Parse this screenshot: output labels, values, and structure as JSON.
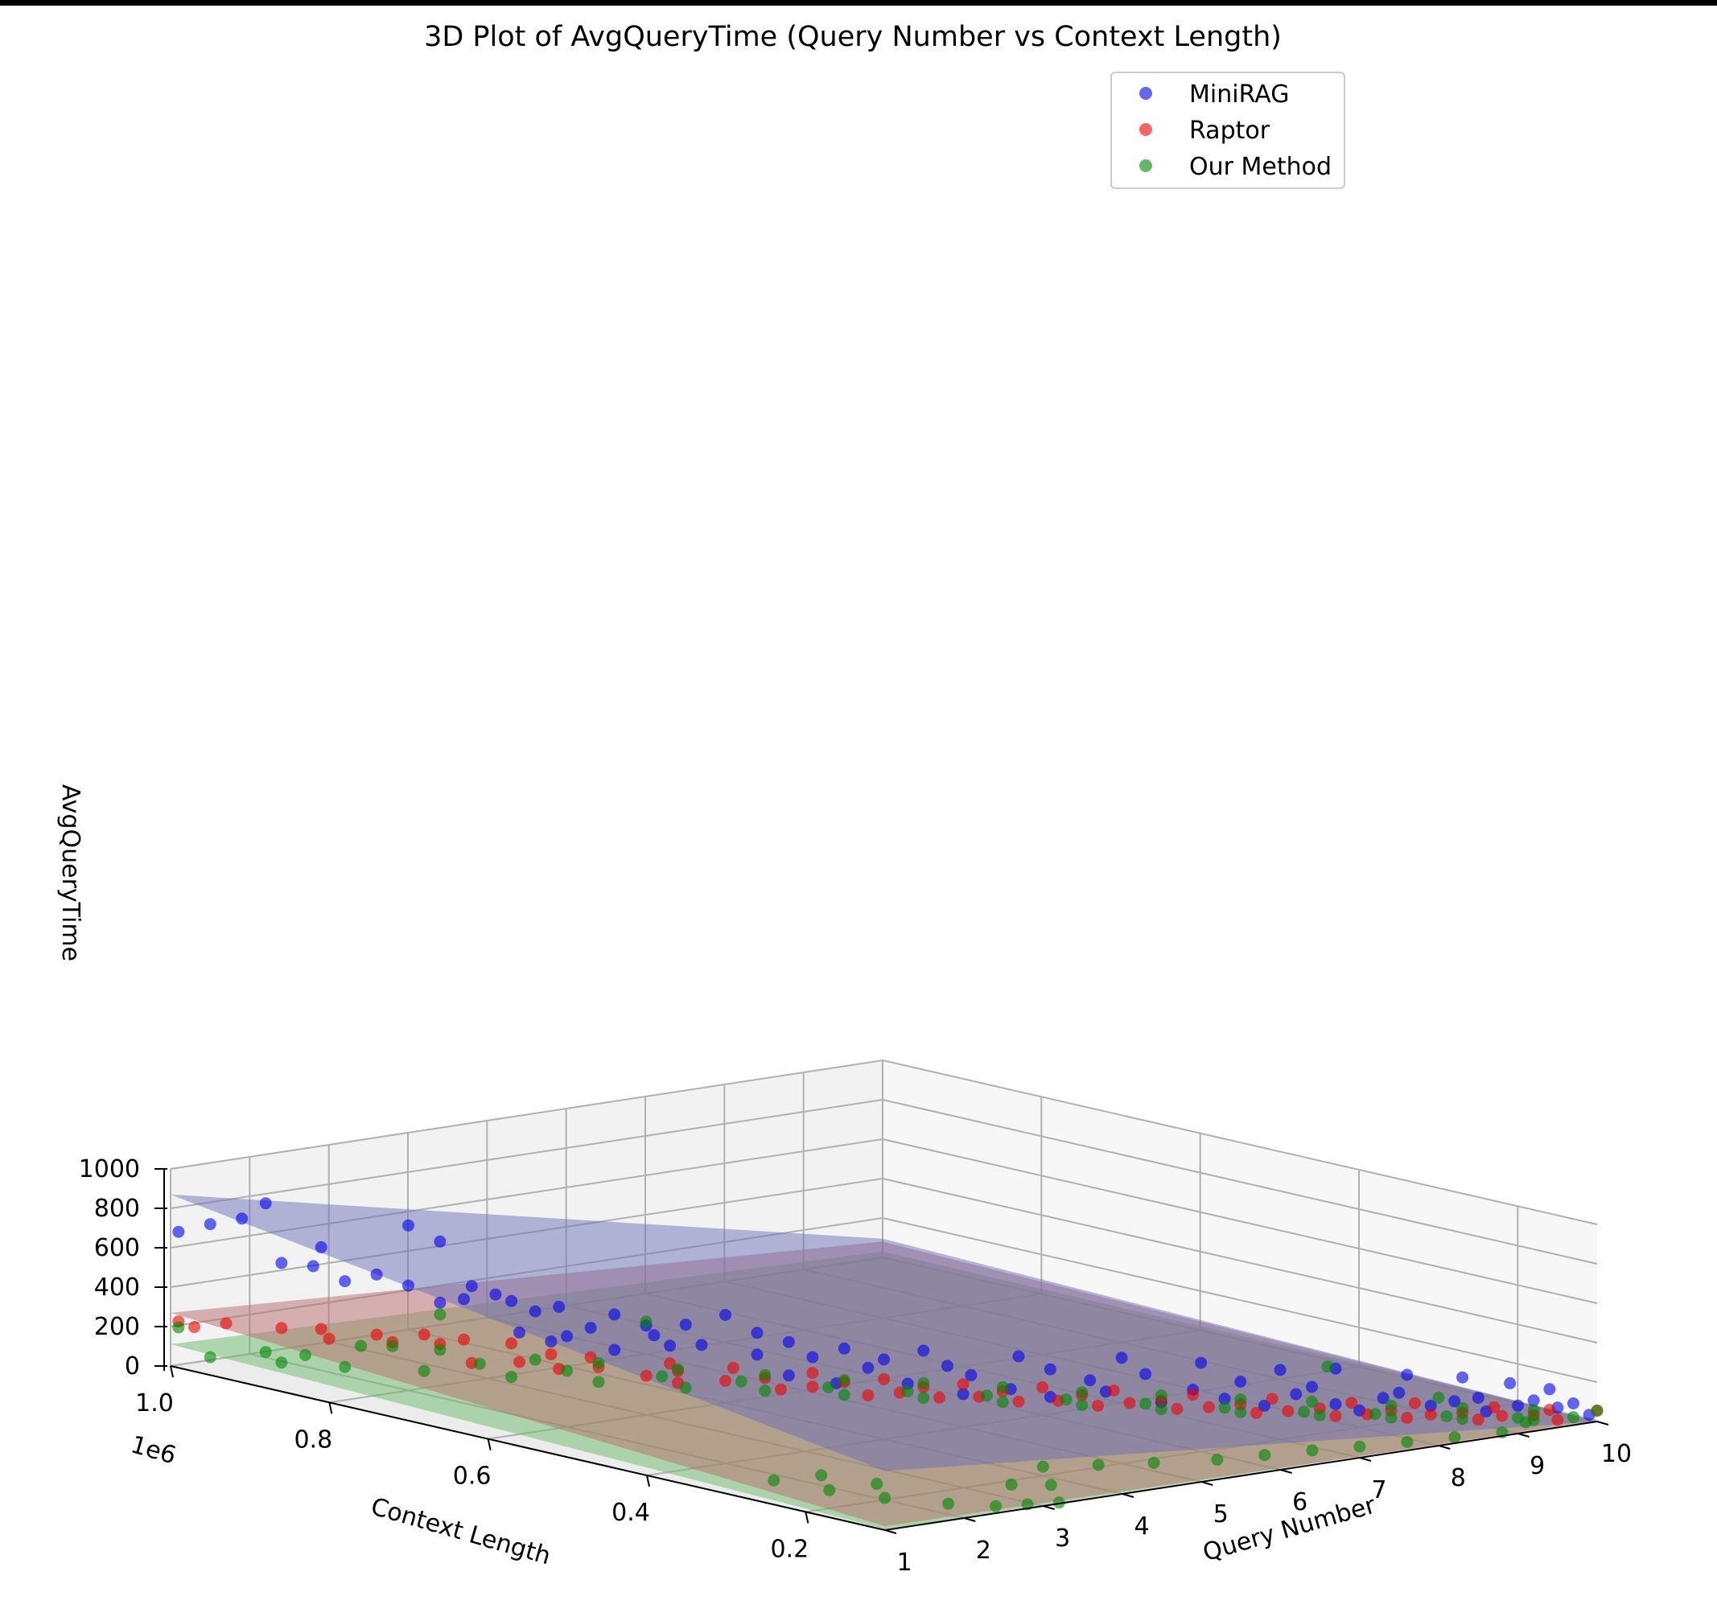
{
  "chart_data": {
    "type": "scatter3d",
    "title": "3D Plot of AvgQueryTime (Query Number vs Context Length)",
    "xlabel": "Query Number",
    "ylabel": "Context Length",
    "zlabel": "AvgQueryTime",
    "y_offset_label": "1e6",
    "xlim": [
      1,
      10
    ],
    "ylim": [
      0.1,
      1.0
    ],
    "zlim": [
      0,
      1000
    ],
    "x_ticks": [
      "1",
      "2",
      "3",
      "4",
      "5",
      "6",
      "7",
      "8",
      "9",
      "10"
    ],
    "y_ticks": [
      "0.2",
      "0.4",
      "0.6",
      "0.8",
      "1.0"
    ],
    "z_ticks": [
      "0",
      "200",
      "400",
      "600",
      "800",
      "1000"
    ],
    "grid": true,
    "legend_position": "top-right",
    "series": [
      {
        "name": "MiniRAG",
        "color": "#0000ee",
        "plane": {
          "z_at_q1_c1": 870,
          "z_at_q10_c1": 95,
          "z_at_q1_c01": 300,
          "z_at_q10_c01": 0
        },
        "points": [
          [
            1.5,
            0.93,
            860
          ],
          [
            1.2,
            0.97,
            735
          ],
          [
            1.4,
            0.95,
            770
          ],
          [
            1.0,
            0.99,
            690
          ],
          [
            2.5,
            0.85,
            760
          ],
          [
            2.6,
            0.82,
            700
          ],
          [
            1.9,
            0.9,
            640
          ],
          [
            1.6,
            0.92,
            560
          ],
          [
            1.8,
            0.9,
            550
          ],
          [
            2.2,
            0.86,
            520
          ],
          [
            2.0,
            0.88,
            480
          ],
          [
            2.4,
            0.84,
            470
          ],
          [
            2.8,
            0.8,
            480
          ],
          [
            2.9,
            0.78,
            450
          ],
          [
            2.7,
            0.8,
            420
          ],
          [
            3.0,
            0.77,
            420
          ],
          [
            3.3,
            0.74,
            400
          ],
          [
            3.1,
            0.75,
            380
          ],
          [
            2.6,
            0.82,
            390
          ],
          [
            3.6,
            0.7,
            380
          ],
          [
            4.2,
            0.62,
            415
          ],
          [
            4.0,
            0.65,
            350
          ],
          [
            3.8,
            0.68,
            330
          ],
          [
            4.4,
            0.6,
            330
          ],
          [
            3.5,
            0.72,
            300
          ],
          [
            3.0,
            0.76,
            270
          ],
          [
            3.3,
            0.73,
            260
          ],
          [
            3.8,
            0.67,
            290
          ],
          [
            4.6,
            0.58,
            290
          ],
          [
            5.0,
            0.55,
            260
          ],
          [
            5.5,
            0.5,
            265
          ],
          [
            6.2,
            0.45,
            240
          ],
          [
            6.8,
            0.38,
            260
          ],
          [
            7.3,
            0.33,
            250
          ],
          [
            7.8,
            0.28,
            230
          ],
          [
            8.2,
            0.25,
            240
          ],
          [
            8.6,
            0.2,
            230
          ],
          [
            9.0,
            0.17,
            220
          ],
          [
            9.3,
            0.14,
            200
          ],
          [
            9.6,
            0.12,
            170
          ],
          [
            5.2,
            0.52,
            220
          ],
          [
            5.6,
            0.48,
            200
          ],
          [
            6.4,
            0.43,
            180
          ],
          [
            6.9,
            0.36,
            190
          ],
          [
            7.5,
            0.3,
            170
          ],
          [
            8.0,
            0.26,
            150
          ],
          [
            8.6,
            0.21,
            130
          ],
          [
            9.1,
            0.16,
            120
          ],
          [
            9.5,
            0.13,
            110
          ],
          [
            9.8,
            0.11,
            95
          ],
          [
            4.4,
            0.6,
            220
          ],
          [
            4.8,
            0.57,
            210
          ],
          [
            3.9,
            0.66,
            240
          ],
          [
            4.1,
            0.64,
            250
          ],
          [
            5.1,
            0.53,
            175
          ],
          [
            5.8,
            0.47,
            150
          ],
          [
            6.6,
            0.4,
            140
          ],
          [
            7.2,
            0.33,
            120
          ],
          [
            7.9,
            0.27,
            110
          ],
          [
            8.5,
            0.22,
            100
          ],
          [
            9.0,
            0.18,
            90
          ],
          [
            9.4,
            0.14,
            80
          ],
          [
            9.7,
            0.12,
            70
          ],
          [
            4.6,
            0.58,
            120
          ],
          [
            5.3,
            0.5,
            110
          ],
          [
            6.0,
            0.44,
            95
          ],
          [
            6.7,
            0.39,
            85
          ],
          [
            7.4,
            0.31,
            80
          ],
          [
            8.1,
            0.24,
            75
          ],
          [
            8.8,
            0.19,
            70
          ],
          [
            3.6,
            0.7,
            200
          ],
          [
            3.2,
            0.74,
            230
          ],
          [
            4.9,
            0.55,
            90
          ],
          [
            5.7,
            0.47,
            60
          ],
          [
            6.3,
            0.42,
            55
          ],
          [
            7.0,
            0.35,
            50
          ],
          [
            7.7,
            0.29,
            45
          ],
          [
            8.3,
            0.23,
            40
          ],
          [
            9.2,
            0.16,
            45
          ],
          [
            9.9,
            0.1,
            40
          ]
        ]
      },
      {
        "name": "Raptor",
        "color": "#ee0000",
        "plane": {
          "z_at_q1_c1": 270,
          "z_at_q10_c1": 80,
          "z_at_q1_c01": 20,
          "z_at_q10_c01": 0
        },
        "points": [
          [
            1.0,
            0.99,
            235
          ],
          [
            1.3,
            0.96,
            235
          ],
          [
            1.6,
            0.92,
            230
          ],
          [
            1.9,
            0.9,
            225
          ],
          [
            2.2,
            0.86,
            215
          ],
          [
            2.5,
            0.83,
            225
          ],
          [
            2.7,
            0.8,
            215
          ],
          [
            3.0,
            0.77,
            205
          ],
          [
            1.1,
            0.98,
            210
          ],
          [
            1.9,
            0.89,
            185
          ],
          [
            2.3,
            0.85,
            180
          ],
          [
            2.6,
            0.82,
            180
          ],
          [
            3.2,
            0.74,
            165
          ],
          [
            3.5,
            0.72,
            150
          ],
          [
            3.9,
            0.66,
            150
          ],
          [
            4.3,
            0.62,
            140
          ],
          [
            4.8,
            0.57,
            130
          ],
          [
            5.2,
            0.52,
            120
          ],
          [
            5.7,
            0.47,
            110
          ],
          [
            6.2,
            0.42,
            110
          ],
          [
            6.7,
            0.38,
            100
          ],
          [
            7.2,
            0.33,
            95
          ],
          [
            7.7,
            0.28,
            90
          ],
          [
            8.2,
            0.23,
            85
          ],
          [
            8.7,
            0.2,
            80
          ],
          [
            9.2,
            0.15,
            75
          ],
          [
            9.6,
            0.12,
            65
          ],
          [
            10.0,
            0.1,
            55
          ],
          [
            3.0,
            0.76,
            120
          ],
          [
            3.5,
            0.71,
            110
          ],
          [
            4.0,
            0.66,
            105
          ],
          [
            4.5,
            0.6,
            95
          ],
          [
            5.0,
            0.55,
            90
          ],
          [
            5.5,
            0.5,
            80
          ],
          [
            6.0,
            0.45,
            75
          ],
          [
            6.5,
            0.4,
            70
          ],
          [
            7.0,
            0.35,
            60
          ],
          [
            7.5,
            0.3,
            55
          ],
          [
            8.0,
            0.25,
            50
          ],
          [
            8.5,
            0.21,
            45
          ],
          [
            9.0,
            0.17,
            40
          ],
          [
            9.5,
            0.13,
            35
          ],
          [
            2.8,
            0.8,
            90
          ],
          [
            3.3,
            0.74,
            85
          ],
          [
            3.8,
            0.68,
            75
          ],
          [
            4.3,
            0.63,
            65
          ],
          [
            4.8,
            0.57,
            60
          ],
          [
            5.3,
            0.51,
            55
          ],
          [
            5.8,
            0.46,
            50
          ],
          [
            6.3,
            0.41,
            45
          ],
          [
            6.8,
            0.37,
            40
          ],
          [
            7.3,
            0.32,
            35
          ],
          [
            7.8,
            0.27,
            30
          ],
          [
            8.3,
            0.22,
            30
          ],
          [
            8.8,
            0.19,
            25
          ],
          [
            9.3,
            0.15,
            25
          ],
          [
            4.0,
            0.66,
            45
          ],
          [
            4.6,
            0.59,
            40
          ],
          [
            5.1,
            0.53,
            35
          ],
          [
            5.6,
            0.49,
            30
          ],
          [
            6.1,
            0.44,
            25
          ],
          [
            6.6,
            0.39,
            20
          ],
          [
            7.1,
            0.34,
            20
          ],
          [
            7.6,
            0.29,
            15
          ],
          [
            8.1,
            0.24,
            15
          ],
          [
            8.6,
            0.2,
            12
          ],
          [
            9.1,
            0.16,
            10
          ],
          [
            9.7,
            0.12,
            8
          ]
        ]
      },
      {
        "name": "Our Method",
        "color": "#008800",
        "plane": {
          "z_at_q1_c1": 110,
          "z_at_q10_c1": 30,
          "z_at_q1_c01": 5,
          "z_at_q10_c01": 10
        },
        "points": [
          [
            1.0,
            0.99,
            205
          ],
          [
            2.0,
            0.86,
            170
          ],
          [
            2.6,
            0.82,
            330
          ],
          [
            3.8,
            0.68,
            350
          ],
          [
            1.5,
            0.93,
            105
          ],
          [
            1.7,
            0.9,
            105
          ],
          [
            2.3,
            0.85,
            160
          ],
          [
            2.6,
            0.82,
            150
          ],
          [
            3.1,
            0.75,
            135
          ],
          [
            3.5,
            0.71,
            130
          ],
          [
            4.0,
            0.66,
            115
          ],
          [
            4.5,
            0.6,
            110
          ],
          [
            5.0,
            0.55,
            100
          ],
          [
            5.5,
            0.5,
            100
          ],
          [
            6.0,
            0.45,
            95
          ],
          [
            6.5,
            0.4,
            85
          ],
          [
            7.0,
            0.35,
            85
          ],
          [
            7.5,
            0.3,
            80
          ],
          [
            8.0,
            0.26,
            75
          ],
          [
            8.5,
            0.21,
            70
          ],
          [
            9.0,
            0.17,
            65
          ],
          [
            9.5,
            0.13,
            60
          ],
          [
            10.0,
            0.1,
            55
          ],
          [
            1.2,
            0.97,
            60
          ],
          [
            1.6,
            0.92,
            55
          ],
          [
            2.0,
            0.88,
            45
          ],
          [
            2.5,
            0.83,
            40
          ],
          [
            3.0,
            0.77,
            35
          ],
          [
            3.5,
            0.71,
            35
          ],
          [
            4.0,
            0.65,
            30
          ],
          [
            4.5,
            0.6,
            30
          ],
          [
            5.0,
            0.55,
            25
          ],
          [
            5.5,
            0.5,
            25
          ],
          [
            6.0,
            0.45,
            20
          ],
          [
            6.5,
            0.4,
            20
          ],
          [
            7.0,
            0.35,
            15
          ],
          [
            7.5,
            0.3,
            15
          ],
          [
            8.0,
            0.25,
            15
          ],
          [
            8.5,
            0.21,
            10
          ],
          [
            9.0,
            0.17,
            10
          ],
          [
            9.5,
            0.13,
            10
          ],
          [
            2.8,
            0.79,
            95
          ],
          [
            3.3,
            0.73,
            85
          ],
          [
            3.9,
            0.67,
            75
          ],
          [
            4.4,
            0.62,
            65
          ],
          [
            4.9,
            0.56,
            60
          ],
          [
            5.4,
            0.51,
            55
          ],
          [
            5.9,
            0.46,
            50
          ],
          [
            6.4,
            0.41,
            45
          ],
          [
            6.9,
            0.36,
            40
          ],
          [
            7.4,
            0.31,
            35
          ],
          [
            7.9,
            0.26,
            30
          ],
          [
            8.4,
            0.22,
            25
          ],
          [
            8.9,
            0.18,
            20
          ],
          [
            9.4,
            0.14,
            18
          ],
          [
            2.0,
            0.2,
            10
          ],
          [
            2.3,
            0.15,
            8
          ],
          [
            2.6,
            0.12,
            5
          ],
          [
            2.9,
            0.11,
            5
          ],
          [
            3.2,
            0.1,
            5
          ],
          [
            1.8,
            0.25,
            15
          ],
          [
            2.2,
            0.3,
            20
          ],
          [
            1.6,
            0.3,
            30
          ],
          [
            2.4,
            0.25,
            10
          ],
          [
            3.4,
            0.18,
            10
          ],
          [
            3.7,
            0.16,
            8
          ],
          [
            4.2,
            0.22,
            15
          ],
          [
            4.7,
            0.2,
            12
          ],
          [
            5.2,
            0.18,
            10
          ],
          [
            5.8,
            0.16,
            8
          ],
          [
            6.3,
            0.15,
            10
          ],
          [
            6.8,
            0.14,
            12
          ],
          [
            7.3,
            0.13,
            10
          ],
          [
            7.8,
            0.12,
            12
          ],
          [
            8.3,
            0.11,
            15
          ],
          [
            8.8,
            0.1,
            18
          ],
          [
            9.3,
            0.12,
            20
          ],
          [
            9.8,
            0.11,
            25
          ],
          [
            9.0,
            0.2,
            90
          ],
          [
            8.6,
            0.3,
            180
          ]
        ]
      }
    ]
  }
}
